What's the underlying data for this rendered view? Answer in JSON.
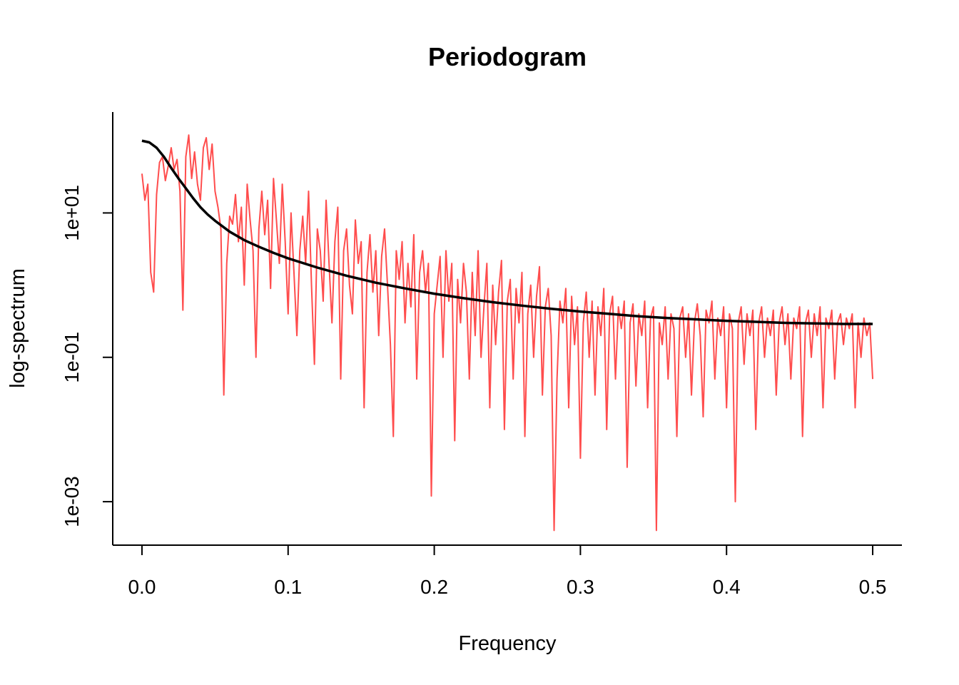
{
  "chart_data": {
    "type": "line",
    "title": "Periodogram",
    "xlabel": "Frequency",
    "ylabel": "log-spectrum",
    "log_y": true,
    "xlim": [
      -0.02,
      0.52
    ],
    "ylim": [
      0.00025,
      250
    ],
    "x_ticks": [
      0.0,
      0.1,
      0.2,
      0.3,
      0.4,
      0.5
    ],
    "x_tick_labels": [
      "0.0",
      "0.1",
      "0.2",
      "0.3",
      "0.4",
      "0.5"
    ],
    "y_ticks": [
      0.001,
      0.1,
      10
    ],
    "y_tick_labels": [
      "1e-03",
      "1e-01",
      "1e+01"
    ],
    "grid": false,
    "series": [
      {
        "role": "raw-periodogram",
        "color": "#ff4d4d",
        "points": [
          [
            0.0,
            35
          ],
          [
            0.002,
            15
          ],
          [
            0.004,
            25
          ],
          [
            0.006,
            1.5
          ],
          [
            0.008,
            0.8
          ],
          [
            0.01,
            18
          ],
          [
            0.012,
            50
          ],
          [
            0.014,
            60
          ],
          [
            0.016,
            28
          ],
          [
            0.018,
            45
          ],
          [
            0.02,
            80
          ],
          [
            0.022,
            40
          ],
          [
            0.024,
            55
          ],
          [
            0.026,
            20
          ],
          [
            0.028,
            0.45
          ],
          [
            0.03,
            60
          ],
          [
            0.032,
            120
          ],
          [
            0.034,
            30
          ],
          [
            0.036,
            70
          ],
          [
            0.038,
            25
          ],
          [
            0.04,
            15
          ],
          [
            0.042,
            80
          ],
          [
            0.044,
            110
          ],
          [
            0.046,
            40
          ],
          [
            0.048,
            90
          ],
          [
            0.05,
            20
          ],
          [
            0.052,
            12
          ],
          [
            0.054,
            6
          ],
          [
            0.056,
            0.03
          ],
          [
            0.058,
            2
          ],
          [
            0.06,
            9
          ],
          [
            0.062,
            7
          ],
          [
            0.064,
            18
          ],
          [
            0.066,
            4
          ],
          [
            0.068,
            12
          ],
          [
            0.07,
            1
          ],
          [
            0.072,
            25
          ],
          [
            0.074,
            8
          ],
          [
            0.076,
            3
          ],
          [
            0.078,
            0.1
          ],
          [
            0.08,
            6
          ],
          [
            0.082,
            20
          ],
          [
            0.084,
            5
          ],
          [
            0.086,
            15
          ],
          [
            0.088,
            0.9
          ],
          [
            0.09,
            30
          ],
          [
            0.092,
            8
          ],
          [
            0.094,
            2
          ],
          [
            0.096,
            25
          ],
          [
            0.098,
            4
          ],
          [
            0.1,
            0.4
          ],
          [
            0.102,
            10
          ],
          [
            0.104,
            1.5
          ],
          [
            0.106,
            0.2
          ],
          [
            0.108,
            3
          ],
          [
            0.11,
            9
          ],
          [
            0.112,
            2
          ],
          [
            0.114,
            20
          ],
          [
            0.116,
            1
          ],
          [
            0.118,
            0.08
          ],
          [
            0.12,
            6
          ],
          [
            0.122,
            3
          ],
          [
            0.124,
            0.6
          ],
          [
            0.126,
            15
          ],
          [
            0.128,
            2
          ],
          [
            0.13,
            0.3
          ],
          [
            0.132,
            4
          ],
          [
            0.134,
            12
          ],
          [
            0.136,
            0.05
          ],
          [
            0.138,
            3
          ],
          [
            0.14,
            6
          ],
          [
            0.142,
            1
          ],
          [
            0.144,
            0.4
          ],
          [
            0.146,
            8
          ],
          [
            0.148,
            2
          ],
          [
            0.15,
            4
          ],
          [
            0.152,
            0.02
          ],
          [
            0.154,
            1.5
          ],
          [
            0.156,
            5
          ],
          [
            0.158,
            0.8
          ],
          [
            0.16,
            3
          ],
          [
            0.162,
            0.2
          ],
          [
            0.164,
            2.5
          ],
          [
            0.166,
            6
          ],
          [
            0.168,
            1
          ],
          [
            0.17,
            0.15
          ],
          [
            0.172,
            0.008
          ],
          [
            0.174,
            3
          ],
          [
            0.176,
            1.2
          ],
          [
            0.178,
            4
          ],
          [
            0.18,
            0.3
          ],
          [
            0.182,
            2
          ],
          [
            0.184,
            0.5
          ],
          [
            0.186,
            5
          ],
          [
            0.188,
            0.05
          ],
          [
            0.19,
            1.5
          ],
          [
            0.192,
            3
          ],
          [
            0.194,
            0.8
          ],
          [
            0.196,
            2
          ],
          [
            0.198,
            0.0012
          ],
          [
            0.2,
            0.4
          ],
          [
            0.202,
            1
          ],
          [
            0.204,
            2.5
          ],
          [
            0.206,
            0.1
          ],
          [
            0.208,
            3
          ],
          [
            0.21,
            0.6
          ],
          [
            0.212,
            2
          ],
          [
            0.214,
            0.007
          ],
          [
            0.216,
            1.2
          ],
          [
            0.218,
            0.3
          ],
          [
            0.22,
            2
          ],
          [
            0.222,
            0.8
          ],
          [
            0.224,
            0.05
          ],
          [
            0.226,
            1.5
          ],
          [
            0.228,
            0.2
          ],
          [
            0.23,
            3
          ],
          [
            0.232,
            0.1
          ],
          [
            0.234,
            0.5
          ],
          [
            0.236,
            2
          ],
          [
            0.238,
            0.02
          ],
          [
            0.24,
            1
          ],
          [
            0.242,
            0.15
          ],
          [
            0.244,
            0.8
          ],
          [
            0.246,
            2.2
          ],
          [
            0.248,
            0.01
          ],
          [
            0.25,
            0.6
          ],
          [
            0.252,
            1.2
          ],
          [
            0.254,
            0.05
          ],
          [
            0.256,
            0.9
          ],
          [
            0.258,
            0.3
          ],
          [
            0.26,
            1.5
          ],
          [
            0.262,
            0.008
          ],
          [
            0.264,
            0.4
          ],
          [
            0.266,
            1
          ],
          [
            0.268,
            0.1
          ],
          [
            0.27,
            0.7
          ],
          [
            0.272,
            1.8
          ],
          [
            0.274,
            0.03
          ],
          [
            0.276,
            0.5
          ],
          [
            0.278,
            0.9
          ],
          [
            0.28,
            0.2
          ],
          [
            0.282,
            0.0004
          ],
          [
            0.284,
            0.05
          ],
          [
            0.286,
            0.6
          ],
          [
            0.288,
            0.3
          ],
          [
            0.29,
            0.9
          ],
          [
            0.292,
            0.02
          ],
          [
            0.294,
            0.7
          ],
          [
            0.296,
            0.15
          ],
          [
            0.298,
            0.5
          ],
          [
            0.3,
            0.004
          ],
          [
            0.302,
            0.3
          ],
          [
            0.304,
            0.8
          ],
          [
            0.306,
            0.1
          ],
          [
            0.308,
            0.6
          ],
          [
            0.31,
            0.03
          ],
          [
            0.312,
            0.5
          ],
          [
            0.314,
            0.2
          ],
          [
            0.316,
            0.9
          ],
          [
            0.318,
            0.01
          ],
          [
            0.32,
            0.4
          ],
          [
            0.322,
            0.7
          ],
          [
            0.324,
            0.05
          ],
          [
            0.326,
            0.5
          ],
          [
            0.328,
            0.25
          ],
          [
            0.33,
            0.6
          ],
          [
            0.332,
            0.003
          ],
          [
            0.334,
            0.3
          ],
          [
            0.336,
            0.55
          ],
          [
            0.338,
            0.04
          ],
          [
            0.34,
            0.4
          ],
          [
            0.342,
            0.2
          ],
          [
            0.344,
            0.6
          ],
          [
            0.346,
            0.02
          ],
          [
            0.348,
            0.35
          ],
          [
            0.35,
            0.5
          ],
          [
            0.352,
            0.0004
          ],
          [
            0.354,
            0.3
          ],
          [
            0.356,
            0.15
          ],
          [
            0.358,
            0.5
          ],
          [
            0.36,
            0.05
          ],
          [
            0.362,
            0.4
          ],
          [
            0.364,
            0.25
          ],
          [
            0.366,
            0.008
          ],
          [
            0.368,
            0.35
          ],
          [
            0.37,
            0.5
          ],
          [
            0.372,
            0.1
          ],
          [
            0.374,
            0.4
          ],
          [
            0.376,
            0.03
          ],
          [
            0.378,
            0.3
          ],
          [
            0.38,
            0.55
          ],
          [
            0.382,
            0.2
          ],
          [
            0.384,
            0.015
          ],
          [
            0.386,
            0.45
          ],
          [
            0.388,
            0.3
          ],
          [
            0.39,
            0.6
          ],
          [
            0.392,
            0.05
          ],
          [
            0.394,
            0.35
          ],
          [
            0.396,
            0.2
          ],
          [
            0.398,
            0.5
          ],
          [
            0.4,
            0.02
          ],
          [
            0.402,
            0.4
          ],
          [
            0.404,
            0.25
          ],
          [
            0.406,
            0.001
          ],
          [
            0.408,
            0.3
          ],
          [
            0.41,
            0.5
          ],
          [
            0.412,
            0.08
          ],
          [
            0.414,
            0.4
          ],
          [
            0.416,
            0.2
          ],
          [
            0.418,
            0.45
          ],
          [
            0.42,
            0.01
          ],
          [
            0.422,
            0.3
          ],
          [
            0.424,
            0.5
          ],
          [
            0.426,
            0.1
          ],
          [
            0.428,
            0.35
          ],
          [
            0.43,
            0.2
          ],
          [
            0.432,
            0.45
          ],
          [
            0.434,
            0.03
          ],
          [
            0.436,
            0.3
          ],
          [
            0.438,
            0.5
          ],
          [
            0.44,
            0.15
          ],
          [
            0.442,
            0.4
          ],
          [
            0.444,
            0.05
          ],
          [
            0.446,
            0.35
          ],
          [
            0.448,
            0.25
          ],
          [
            0.45,
            0.5
          ],
          [
            0.452,
            0.008
          ],
          [
            0.454,
            0.3
          ],
          [
            0.456,
            0.45
          ],
          [
            0.458,
            0.1
          ],
          [
            0.46,
            0.4
          ],
          [
            0.462,
            0.2
          ],
          [
            0.464,
            0.5
          ],
          [
            0.466,
            0.02
          ],
          [
            0.468,
            0.35
          ],
          [
            0.47,
            0.25
          ],
          [
            0.472,
            0.45
          ],
          [
            0.474,
            0.05
          ],
          [
            0.476,
            0.3
          ],
          [
            0.478,
            0.4
          ],
          [
            0.48,
            0.15
          ],
          [
            0.482,
            0.35
          ],
          [
            0.484,
            0.25
          ],
          [
            0.486,
            0.4
          ],
          [
            0.488,
            0.02
          ],
          [
            0.49,
            0.3
          ],
          [
            0.492,
            0.1
          ],
          [
            0.494,
            0.35
          ],
          [
            0.496,
            0.2
          ],
          [
            0.498,
            0.3
          ],
          [
            0.5,
            0.05
          ]
        ]
      },
      {
        "role": "smoothed-spectrum",
        "color": "#000000",
        "points": [
          [
            0.0,
            100
          ],
          [
            0.005,
            95
          ],
          [
            0.01,
            80
          ],
          [
            0.015,
            60
          ],
          [
            0.02,
            42
          ],
          [
            0.025,
            30
          ],
          [
            0.03,
            22
          ],
          [
            0.035,
            16
          ],
          [
            0.04,
            12
          ],
          [
            0.045,
            9.5
          ],
          [
            0.05,
            7.8
          ],
          [
            0.06,
            5.5
          ],
          [
            0.07,
            4.2
          ],
          [
            0.08,
            3.4
          ],
          [
            0.09,
            2.8
          ],
          [
            0.1,
            2.35
          ],
          [
            0.12,
            1.75
          ],
          [
            0.14,
            1.35
          ],
          [
            0.16,
            1.08
          ],
          [
            0.18,
            0.9
          ],
          [
            0.2,
            0.76
          ],
          [
            0.22,
            0.66
          ],
          [
            0.24,
            0.58
          ],
          [
            0.26,
            0.52
          ],
          [
            0.28,
            0.47
          ],
          [
            0.3,
            0.43
          ],
          [
            0.32,
            0.4
          ],
          [
            0.34,
            0.37
          ],
          [
            0.36,
            0.35
          ],
          [
            0.38,
            0.335
          ],
          [
            0.4,
            0.32
          ],
          [
            0.42,
            0.31
          ],
          [
            0.44,
            0.3
          ],
          [
            0.46,
            0.295
          ],
          [
            0.48,
            0.29
          ],
          [
            0.5,
            0.29
          ]
        ]
      }
    ]
  }
}
